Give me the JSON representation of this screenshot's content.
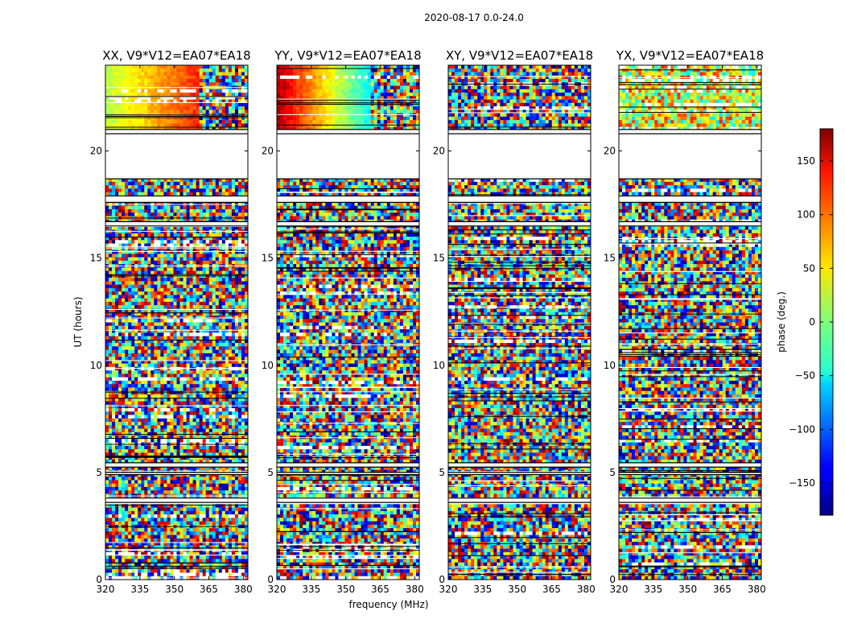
{
  "figure": {
    "title": "2020-08-17 0.0-24.0"
  },
  "chart_data": {
    "type": "heatmap",
    "title": "2020-08-17 0.0-24.0",
    "xlabel": "frequency (MHz)",
    "ylabel": "UT (hours)",
    "xlim": [
      320,
      382
    ],
    "ylim": [
      0,
      24
    ],
    "xticks": [
      "320",
      "335",
      "350",
      "365",
      "380"
    ],
    "yticks": [
      "0",
      "5",
      "10",
      "15",
      "20"
    ],
    "xtick_values": [
      320,
      335,
      350,
      365,
      380
    ],
    "ytick_values": [
      0,
      5,
      10,
      15,
      20
    ],
    "panels": [
      {
        "title": "XX, V9*V12=EA07*EA18"
      },
      {
        "title": "YY, V9*V12=EA07*EA18"
      },
      {
        "title": "XY, V9*V12=EA07*EA18"
      },
      {
        "title": "YX, V9*V12=EA07*EA18"
      }
    ],
    "colorbar": {
      "label": "phase (deg.)",
      "colormap": "jet",
      "range": [
        -180,
        180
      ],
      "ticks": [
        "150",
        "100",
        "50",
        "0",
        "−50",
        "−100",
        "−150"
      ],
      "tick_values": [
        150,
        100,
        50,
        0,
        -50,
        -100,
        -150
      ]
    },
    "flagged_rows_hours": [
      [
        20.8,
        21.0
      ],
      [
        18.7,
        20.8
      ],
      [
        17.6,
        17.9
      ],
      [
        16.5,
        16.7
      ],
      [
        5.25,
        5.45
      ],
      [
        4.9,
        5.0
      ],
      [
        3.6,
        3.8
      ]
    ]
  }
}
